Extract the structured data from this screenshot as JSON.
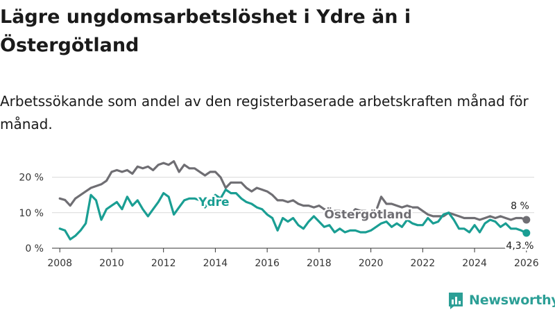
{
  "title": "Lägre ungdomsarbetslöshet i Ydre än i Östergötland",
  "subtitle": "Arbetssökande som andel av den registerbaserade arbetskraften månad för månad.",
  "brand": {
    "name": "Newsworthy"
  },
  "colors": {
    "ydre": "#1a9e93",
    "ostergotland": "#6f6e73",
    "grid": "#d9d9d9",
    "axis": "#333333"
  },
  "chart_data": {
    "type": "line",
    "title": "Lägre ungdomsarbetslöshet i Ydre än i Östergötland",
    "xlabel": "",
    "ylabel": "",
    "xlim": [
      2007.7,
      2026.3
    ],
    "ylim": [
      0,
      25
    ],
    "x_ticks": [
      2008,
      2010,
      2012,
      2014,
      2016,
      2018,
      2020,
      2022,
      2024,
      2026
    ],
    "x_tick_labels": [
      "2008",
      "2010",
      "2012",
      "2014",
      "2016",
      "2018",
      "2020",
      "2022",
      "2024",
      "2026"
    ],
    "y_ticks": [
      0,
      10,
      20
    ],
    "y_tick_labels": [
      "0 %",
      "10 %",
      "20 %"
    ],
    "series": [
      {
        "name": "Östergötland",
        "label": "Östergötland",
        "end_label": "8 %",
        "x": [
          2008.0,
          2008.2,
          2008.4,
          2008.6,
          2008.8,
          2009.0,
          2009.2,
          2009.4,
          2009.6,
          2009.8,
          2010.0,
          2010.2,
          2010.4,
          2010.6,
          2010.8,
          2011.0,
          2011.2,
          2011.4,
          2011.6,
          2011.8,
          2012.0,
          2012.2,
          2012.4,
          2012.6,
          2012.8,
          2013.0,
          2013.2,
          2013.4,
          2013.6,
          2013.8,
          2014.0,
          2014.2,
          2014.4,
          2014.6,
          2014.8,
          2015.0,
          2015.2,
          2015.4,
          2015.6,
          2015.8,
          2016.0,
          2016.2,
          2016.4,
          2016.6,
          2016.8,
          2017.0,
          2017.2,
          2017.4,
          2017.6,
          2017.8,
          2018.0,
          2018.2,
          2018.4,
          2018.6,
          2018.8,
          2019.0,
          2019.2,
          2019.4,
          2019.6,
          2019.8,
          2020.0,
          2020.2,
          2020.4,
          2020.6,
          2020.8,
          2021.0,
          2021.2,
          2021.4,
          2021.6,
          2021.8,
          2022.0,
          2022.2,
          2022.4,
          2022.6,
          2022.8,
          2023.0,
          2023.2,
          2023.4,
          2023.6,
          2023.8,
          2024.0,
          2024.2,
          2024.4,
          2024.6,
          2024.8,
          2025.0,
          2025.2,
          2025.4,
          2025.6,
          2025.8,
          2026.0
        ],
        "y": [
          14,
          13.6,
          12,
          14,
          15,
          16,
          17,
          17.5,
          18,
          19,
          21.5,
          22,
          21.5,
          22,
          21,
          23,
          22.5,
          23,
          22,
          23.5,
          24,
          23.5,
          24.5,
          21.5,
          23.5,
          22.5,
          22.5,
          21.5,
          20.5,
          21.5,
          21.5,
          20,
          17,
          18.5,
          18.5,
          18.5,
          17,
          16,
          17,
          16.5,
          16,
          15,
          13.5,
          13.5,
          13,
          13.5,
          12.5,
          12,
          12,
          11.5,
          12,
          11,
          10.5,
          10.5,
          10.5,
          9,
          9.5,
          11,
          10.5,
          10.5,
          10,
          10.5,
          14.5,
          12.5,
          12.5,
          12,
          11.5,
          12,
          11.5,
          11.5,
          10.5,
          9.5,
          9,
          9,
          9,
          10,
          9.5,
          9,
          8.5,
          8.5,
          8.5,
          8,
          8.5,
          9,
          8.5,
          9,
          8.5,
          8,
          8.5,
          8.5,
          8
        ]
      },
      {
        "name": "Ydre",
        "label": "Ydre",
        "end_label": "4,3 %",
        "x": [
          2008.0,
          2008.2,
          2008.4,
          2008.6,
          2008.8,
          2009.0,
          2009.2,
          2009.4,
          2009.6,
          2009.8,
          2010.0,
          2010.2,
          2010.4,
          2010.6,
          2010.8,
          2011.0,
          2011.2,
          2011.4,
          2011.6,
          2011.8,
          2012.0,
          2012.2,
          2012.4,
          2012.6,
          2012.8,
          2013.0,
          2013.2,
          2013.4,
          2013.6,
          2013.8,
          2014.0,
          2014.2,
          2014.4,
          2014.6,
          2014.8,
          2015.0,
          2015.2,
          2015.4,
          2015.6,
          2015.8,
          2016.0,
          2016.2,
          2016.4,
          2016.6,
          2016.8,
          2017.0,
          2017.2,
          2017.4,
          2017.6,
          2017.8,
          2018.0,
          2018.2,
          2018.4,
          2018.6,
          2018.8,
          2019.0,
          2019.2,
          2019.4,
          2019.6,
          2019.8,
          2020.0,
          2020.2,
          2020.4,
          2020.6,
          2020.8,
          2021.0,
          2021.2,
          2021.4,
          2021.6,
          2021.8,
          2022.0,
          2022.2,
          2022.4,
          2022.6,
          2022.8,
          2023.0,
          2023.2,
          2023.4,
          2023.6,
          2023.8,
          2024.0,
          2024.2,
          2024.4,
          2024.6,
          2024.8,
          2025.0,
          2025.2,
          2025.4,
          2025.6,
          2025.8,
          2026.0
        ],
        "y": [
          5.5,
          5,
          2.5,
          3.5,
          5,
          7,
          15,
          13.5,
          8,
          11,
          12,
          13,
          11,
          14.5,
          12,
          13.5,
          11,
          9,
          11,
          13,
          15.5,
          14.5,
          9.5,
          11.5,
          13.5,
          14,
          14,
          13.5,
          11.5,
          13.5,
          15,
          14,
          16.5,
          15.5,
          15.5,
          14,
          13,
          12.5,
          11.5,
          11,
          9.5,
          8.5,
          5,
          8.5,
          7.5,
          8.5,
          6.5,
          5.5,
          7.5,
          9,
          7.5,
          6,
          6.5,
          4.5,
          5.5,
          4.5,
          5,
          5,
          4.5,
          4.5,
          5,
          6,
          7,
          7.5,
          6,
          7,
          6,
          8,
          7,
          6.5,
          6.5,
          8.5,
          7,
          7.5,
          9.5,
          10,
          8,
          5.5,
          5.5,
          4.5,
          6.5,
          4.5,
          7,
          8,
          7.5,
          6,
          7,
          5.5,
          5.5,
          5,
          4.3
        ]
      }
    ]
  }
}
